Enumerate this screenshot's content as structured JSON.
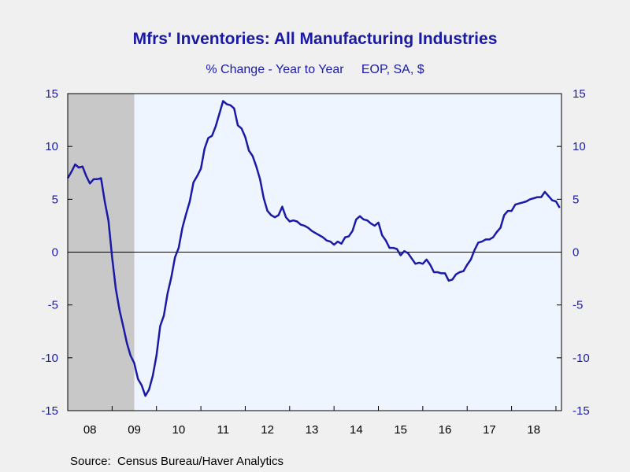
{
  "chart_data": {
    "type": "line",
    "title": "Mfrs' Inventories: All Manufacturing Industries",
    "subtitle": "% Change - Year to Year     EOP, SA, $",
    "source": "Source:  Census Bureau/Haver Analytics",
    "xlabel": "",
    "ylabel": "",
    "ylim": [
      -15,
      15
    ],
    "y_ticks": [
      15,
      10,
      5,
      0,
      -5,
      -10,
      -15
    ],
    "y_tick_labels": [
      "15",
      "10",
      "5",
      "0",
      "-5",
      "-10",
      "-15"
    ],
    "x_start": "2008-01",
    "x_end": "2018-12",
    "x_categories": [
      "08",
      "09",
      "10",
      "11",
      "12",
      "13",
      "14",
      "15",
      "16",
      "17",
      "18"
    ],
    "recession": {
      "start": "2008-01",
      "end": "2009-06"
    },
    "zero_line": true,
    "grid": false,
    "colors": {
      "line": "#1a1aa6",
      "plot_background": "#eef5ff",
      "recession_shading": "#c8c8c8",
      "text": "#1a1aa6"
    },
    "series": [
      {
        "values": [
          [
            "2008-01",
            7.0
          ],
          [
            "2008-02",
            7.6
          ],
          [
            "2008-03",
            8.3
          ],
          [
            "2008-04",
            8.0
          ],
          [
            "2008-05",
            8.1
          ],
          [
            "2008-06",
            7.2
          ],
          [
            "2008-07",
            6.5
          ],
          [
            "2008-08",
            6.9
          ],
          [
            "2008-09",
            6.9
          ],
          [
            "2008-10",
            7.0
          ],
          [
            "2008-11",
            4.8
          ],
          [
            "2008-12",
            3.0
          ],
          [
            "2009-01",
            -0.5
          ],
          [
            "2009-02",
            -3.5
          ],
          [
            "2009-03",
            -5.5
          ],
          [
            "2009-04",
            -7.0
          ],
          [
            "2009-05",
            -8.6
          ],
          [
            "2009-06",
            -9.8
          ],
          [
            "2009-07",
            -10.5
          ],
          [
            "2009-08",
            -12.0
          ],
          [
            "2009-09",
            -12.6
          ],
          [
            "2009-10",
            -13.6
          ],
          [
            "2009-11",
            -13.0
          ],
          [
            "2009-12",
            -11.7
          ],
          [
            "2010-01",
            -9.8
          ],
          [
            "2010-02",
            -7.0
          ],
          [
            "2010-03",
            -6.0
          ],
          [
            "2010-04",
            -3.9
          ],
          [
            "2010-05",
            -2.4
          ],
          [
            "2010-06",
            -0.5
          ],
          [
            "2010-07",
            0.4
          ],
          [
            "2010-08",
            2.3
          ],
          [
            "2010-09",
            3.6
          ],
          [
            "2010-10",
            4.8
          ],
          [
            "2010-11",
            6.6
          ],
          [
            "2010-12",
            7.2
          ],
          [
            "2011-01",
            7.9
          ],
          [
            "2011-02",
            9.8
          ],
          [
            "2011-03",
            10.8
          ],
          [
            "2011-04",
            11.0
          ],
          [
            "2011-05",
            11.9
          ],
          [
            "2011-06",
            13.1
          ],
          [
            "2011-07",
            14.3
          ],
          [
            "2011-08",
            14.0
          ],
          [
            "2011-09",
            13.9
          ],
          [
            "2011-10",
            13.6
          ],
          [
            "2011-11",
            12.0
          ],
          [
            "2011-12",
            11.7
          ],
          [
            "2012-01",
            10.9
          ],
          [
            "2012-02",
            9.6
          ],
          [
            "2012-03",
            9.1
          ],
          [
            "2012-04",
            8.1
          ],
          [
            "2012-05",
            6.9
          ],
          [
            "2012-06",
            5.1
          ],
          [
            "2012-07",
            3.9
          ],
          [
            "2012-08",
            3.5
          ],
          [
            "2012-09",
            3.3
          ],
          [
            "2012-10",
            3.5
          ],
          [
            "2012-11",
            4.3
          ],
          [
            "2012-12",
            3.3
          ],
          [
            "2013-01",
            2.9
          ],
          [
            "2013-02",
            3.0
          ],
          [
            "2013-03",
            2.9
          ],
          [
            "2013-04",
            2.6
          ],
          [
            "2013-05",
            2.5
          ],
          [
            "2013-06",
            2.3
          ],
          [
            "2013-07",
            2.0
          ],
          [
            "2013-08",
            1.8
          ],
          [
            "2013-09",
            1.6
          ],
          [
            "2013-10",
            1.4
          ],
          [
            "2013-11",
            1.1
          ],
          [
            "2013-12",
            1.0
          ],
          [
            "2014-01",
            0.7
          ],
          [
            "2014-02",
            1.0
          ],
          [
            "2014-03",
            0.8
          ],
          [
            "2014-04",
            1.4
          ],
          [
            "2014-05",
            1.5
          ],
          [
            "2014-06",
            2.0
          ],
          [
            "2014-07",
            3.1
          ],
          [
            "2014-08",
            3.4
          ],
          [
            "2014-09",
            3.1
          ],
          [
            "2014-10",
            3.0
          ],
          [
            "2014-11",
            2.7
          ],
          [
            "2014-12",
            2.5
          ],
          [
            "2015-01",
            2.8
          ],
          [
            "2015-02",
            1.6
          ],
          [
            "2015-03",
            1.1
          ],
          [
            "2015-04",
            0.4
          ],
          [
            "2015-05",
            0.4
          ],
          [
            "2015-06",
            0.3
          ],
          [
            "2015-07",
            -0.3
          ],
          [
            "2015-08",
            0.1
          ],
          [
            "2015-09",
            -0.1
          ],
          [
            "2015-10",
            -0.6
          ],
          [
            "2015-11",
            -1.1
          ],
          [
            "2015-12",
            -1.0
          ],
          [
            "2016-01",
            -1.1
          ],
          [
            "2016-02",
            -0.7
          ],
          [
            "2016-03",
            -1.2
          ],
          [
            "2016-04",
            -1.9
          ],
          [
            "2016-05",
            -1.9
          ],
          [
            "2016-06",
            -2.0
          ],
          [
            "2016-07",
            -2.0
          ],
          [
            "2016-08",
            -2.7
          ],
          [
            "2016-09",
            -2.6
          ],
          [
            "2016-10",
            -2.1
          ],
          [
            "2016-11",
            -1.9
          ],
          [
            "2016-12",
            -1.8
          ],
          [
            "2017-01",
            -1.2
          ],
          [
            "2017-02",
            -0.7
          ],
          [
            "2017-03",
            0.2
          ],
          [
            "2017-04",
            0.9
          ],
          [
            "2017-05",
            1.0
          ],
          [
            "2017-06",
            1.2
          ],
          [
            "2017-07",
            1.2
          ],
          [
            "2017-08",
            1.4
          ],
          [
            "2017-09",
            1.9
          ],
          [
            "2017-10",
            2.3
          ],
          [
            "2017-11",
            3.5
          ],
          [
            "2017-12",
            3.9
          ],
          [
            "2018-01",
            3.9
          ],
          [
            "2018-02",
            4.5
          ],
          [
            "2018-03",
            4.6
          ],
          [
            "2018-04",
            4.7
          ],
          [
            "2018-05",
            4.8
          ],
          [
            "2018-06",
            5.0
          ],
          [
            "2018-07",
            5.1
          ],
          [
            "2018-08",
            5.2
          ],
          [
            "2018-09",
            5.2
          ],
          [
            "2018-10",
            5.7
          ],
          [
            "2018-11",
            5.3
          ],
          [
            "2018-12",
            4.9
          ],
          [
            "2019-01",
            4.8
          ],
          [
            "2019-02",
            4.2
          ]
        ]
      }
    ]
  }
}
